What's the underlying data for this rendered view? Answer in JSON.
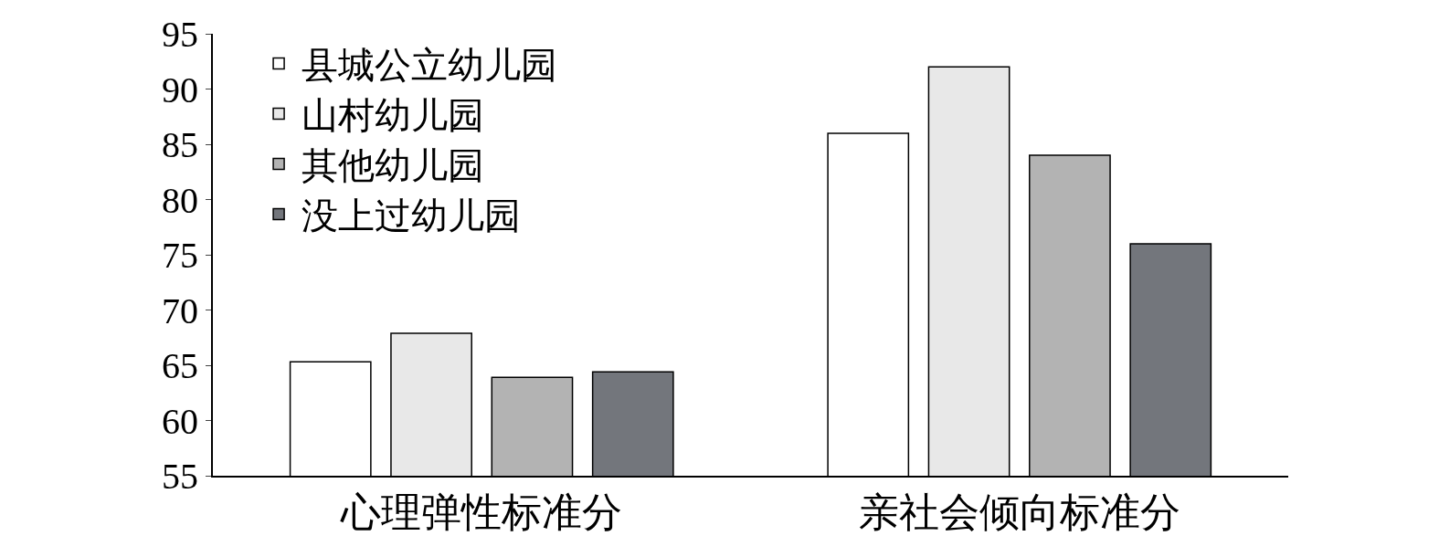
{
  "chart_data": {
    "type": "bar",
    "categories": [
      "心理弹性标准分",
      "亲社会倾向标准分"
    ],
    "series": [
      {
        "name": "县城公立幼儿园",
        "color": "#ffffff",
        "values": [
          65.3,
          86
        ]
      },
      {
        "name": "山村幼儿园",
        "color": "#e8e8e8",
        "values": [
          67.9,
          92
        ]
      },
      {
        "name": "其他幼儿园",
        "color": "#b3b3b3",
        "values": [
          63.9,
          84
        ]
      },
      {
        "name": "没上过幼儿园",
        "color": "#73767c",
        "values": [
          64.4,
          76
        ]
      }
    ],
    "ylim": [
      55,
      95
    ],
    "yticks": [
      55,
      60,
      65,
      70,
      75,
      80,
      85,
      90,
      95
    ],
    "grid": false,
    "legend": "top left"
  }
}
